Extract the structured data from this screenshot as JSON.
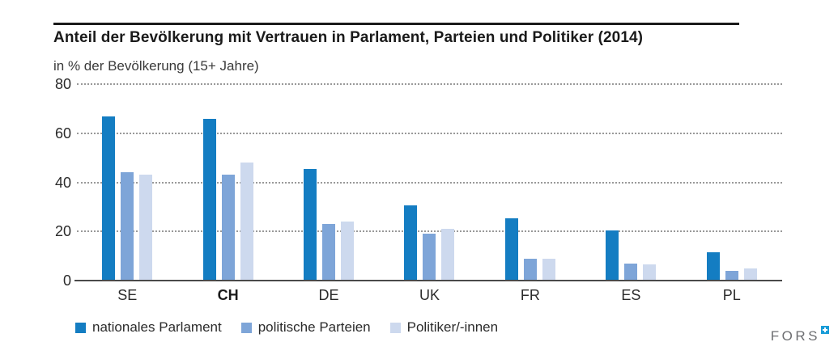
{
  "header": {
    "title": "Anteil der Bevölkerung mit Vertrauen in Parlament, Parteien und Politiker (2014)",
    "subtitle": "in % der Bevölkerung (15+ Jahre)"
  },
  "chart_data": {
    "type": "bar",
    "categories": [
      "SE",
      "CH",
      "DE",
      "UK",
      "FR",
      "ES",
      "PL"
    ],
    "emphasized_category": "CH",
    "series": [
      {
        "name": "nationales Parlament",
        "color": "#147dc2",
        "values": [
          67,
          66,
          45.5,
          30.5,
          25.5,
          20.5,
          11.5
        ]
      },
      {
        "name": "politische Parteien",
        "color": "#7ea5d8",
        "values": [
          44,
          43,
          23,
          19,
          9,
          7,
          4
        ]
      },
      {
        "name": "Politiker/-innen",
        "color": "#cdd9ee",
        "values": [
          43,
          48,
          24,
          21,
          9,
          6.5,
          5
        ]
      }
    ],
    "ylim": [
      0,
      80
    ],
    "yticks": [
      0,
      20,
      40,
      60,
      80
    ],
    "grid": "dashed-horizontal",
    "legend_position": "bottom",
    "colors": {
      "gridline": "#999999",
      "axis": "#4a4a4a",
      "logo_blue": "#189cd8"
    }
  },
  "footer": {
    "logo_text": "FORS"
  }
}
